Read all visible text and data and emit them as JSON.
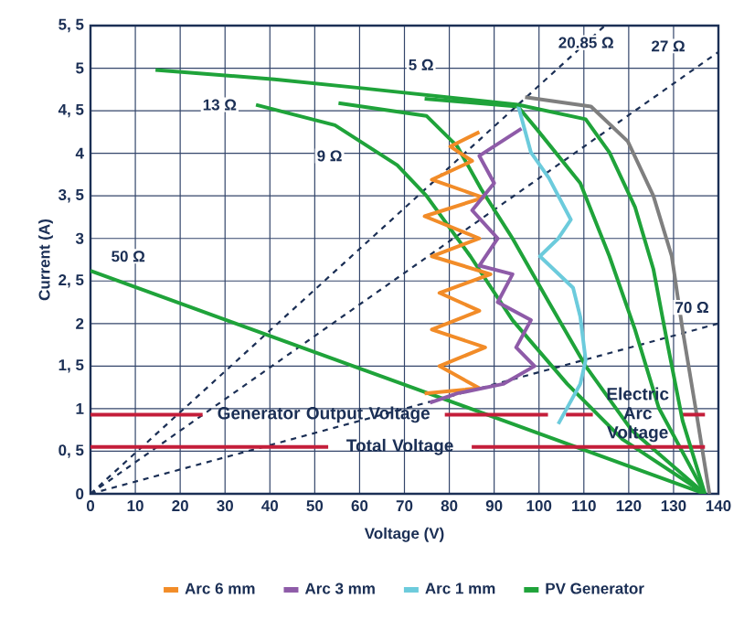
{
  "chart_data": {
    "type": "line",
    "xlabel": "Voltage (V)",
    "ylabel": "Current (A)",
    "xlim": [
      0,
      140
    ],
    "ylim": [
      0,
      5.5
    ],
    "xticks": [
      0,
      10,
      20,
      30,
      40,
      50,
      60,
      70,
      80,
      90,
      100,
      110,
      120,
      130,
      140
    ],
    "yticks": [
      0,
      {
        "value": 0.5,
        "label": "0, 5"
      },
      1,
      {
        "value": 1.5,
        "label": "1, 5"
      },
      2,
      {
        "value": 2.5,
        "label": "2, 5"
      },
      3,
      {
        "value": 3.5,
        "label": "3, 5"
      },
      4,
      {
        "value": 4.5,
        "label": "4, 5"
      },
      5,
      {
        "value": 5.5,
        "label": "5, 5"
      }
    ],
    "grid": true,
    "legend": "bottom",
    "series": [
      {
        "color": "#1b2f55",
        "line_style": "dashed",
        "x": [
          0,
          114.7
        ],
        "values": [
          0,
          5.5
        ]
      },
      {
        "color": "#1b2f55",
        "line_style": "dashed",
        "x": [
          0,
          140
        ],
        "values": [
          0,
          5.19
        ]
      },
      {
        "color": "#1b2f55",
        "line_style": "dashed",
        "x": [
          0,
          140
        ],
        "values": [
          0,
          2.0
        ]
      },
      {
        "color": "#7f7f7f",
        "x": [
          96.9,
          111.6,
          119.8,
          125.5,
          129.6,
          132.0,
          134.9,
          138
        ],
        "values": [
          4.66,
          4.55,
          4.14,
          3.5,
          2.79,
          1.93,
          1.01,
          0
        ]
      },
      {
        "color": "#1fa33a",
        "x": [
          74.5,
          95.3,
          99.4,
          109.2,
          115.7,
          121.4,
          126.7,
          137
        ],
        "values": [
          4.64,
          4.55,
          4.29,
          3.65,
          2.79,
          1.93,
          1.01,
          0
        ]
      },
      {
        "color": "#1fa33a",
        "x": [
          55.3,
          74.9,
          81.8,
          87.1,
          94.1,
          102.2,
          110.4,
          120.6,
          137
        ],
        "values": [
          4.59,
          4.44,
          4.08,
          3.58,
          3.0,
          2.25,
          1.5,
          0.75,
          0
        ]
      },
      {
        "color": "#1fa33a",
        "x": [
          36.9,
          54.5,
          68.4,
          74.9,
          84.7,
          94.1,
          106.3,
          118.6,
          137
        ],
        "values": [
          4.57,
          4.33,
          3.86,
          3.5,
          2.79,
          2.04,
          1.29,
          0.64,
          0
        ]
      },
      {
        "color": "#1fa33a",
        "x": [
          0,
          137
        ],
        "values": [
          2.62,
          0
        ]
      },
      {
        "color": "#c41e3a",
        "x": [
          0,
          25,
          52,
          79,
          102
        ],
        "values": [
          0.93,
          0.93,
          null,
          0.93,
          0.93
        ]
      },
      {
        "color": "#c41e3a",
        "x": [
          106,
          112,
          122,
          132,
          137
        ],
        "values": [
          0.93,
          0.93,
          null,
          0.93,
          0.93
        ]
      },
      {
        "color": "#c41e3a",
        "x": [
          0,
          53,
          69,
          85,
          137
        ],
        "values": [
          0.55,
          0.55,
          null,
          0.55,
          0.55
        ]
      },
      {
        "name": "Arc 6 mm",
        "color": "#f28c28",
        "x": [
          74.5,
          86.7,
          77.8,
          88.0,
          76.1,
          86.7,
          77.8,
          89.2,
          76.1,
          86.7,
          74.5,
          87.6,
          76.1,
          85.1,
          80.2,
          86.7
        ],
        "values": [
          1.18,
          1.24,
          1.5,
          1.72,
          1.93,
          2.15,
          2.36,
          2.58,
          2.79,
          3.0,
          3.26,
          3.48,
          3.69,
          3.91,
          4.08,
          4.25
        ]
      },
      {
        "name": "Arc 3 mm",
        "color": "#8e5ba8",
        "x": [
          96.1,
          86.7,
          90.0,
          85.1,
          90.8,
          86.7,
          94.1,
          90.8,
          98.2,
          94.9,
          99.0,
          92.0,
          81.8,
          75.7
        ],
        "values": [
          4.29,
          3.97,
          3.65,
          3.33,
          3.0,
          2.68,
          2.58,
          2.25,
          2.04,
          1.72,
          1.5,
          1.29,
          1.18,
          1.07
        ]
      },
      {
        "name": "Arc 1 mm",
        "color": "#6ccbdc",
        "x": [
          95.3,
          98.2,
          102.2,
          107.1,
          104.3,
          100.2,
          107.6,
          109.2,
          110.4,
          109.2,
          104.3
        ],
        "values": [
          4.57,
          4.01,
          3.71,
          3.22,
          3.0,
          2.79,
          2.42,
          2.08,
          1.57,
          1.29,
          0.82
        ]
      },
      {
        "name": "PV Generator",
        "color": "#1fa33a",
        "x": [
          14.5,
          41.0,
          61.4,
          95.3,
          110.4,
          115.7,
          121.4,
          125.5,
          128.8,
          132.0,
          137
        ],
        "values": [
          4.98,
          4.87,
          4.76,
          4.57,
          4.4,
          4.01,
          3.37,
          2.64,
          1.72,
          0.86,
          0
        ]
      }
    ],
    "annotations": [
      {
        "text": "5 Ω",
        "x": 73.7,
        "y": 5.04
      },
      {
        "text": "9 Ω",
        "x": 53.3,
        "y": 3.97
      },
      {
        "text": "13 Ω",
        "x": 28.8,
        "y": 4.57
      },
      {
        "text": "50 Ω",
        "x": 8.4,
        "y": 2.79
      },
      {
        "text": "20.85 Ω",
        "x": 110.5,
        "y": 5.3
      },
      {
        "text": "27 Ω",
        "x": 128.8,
        "y": 5.26
      },
      {
        "text": "70 Ω",
        "x": 134.1,
        "y": 2.19
      },
      "Generator Output Voltage",
      "Electric Arc Voltage",
      "Total Voltage"
    ]
  }
}
